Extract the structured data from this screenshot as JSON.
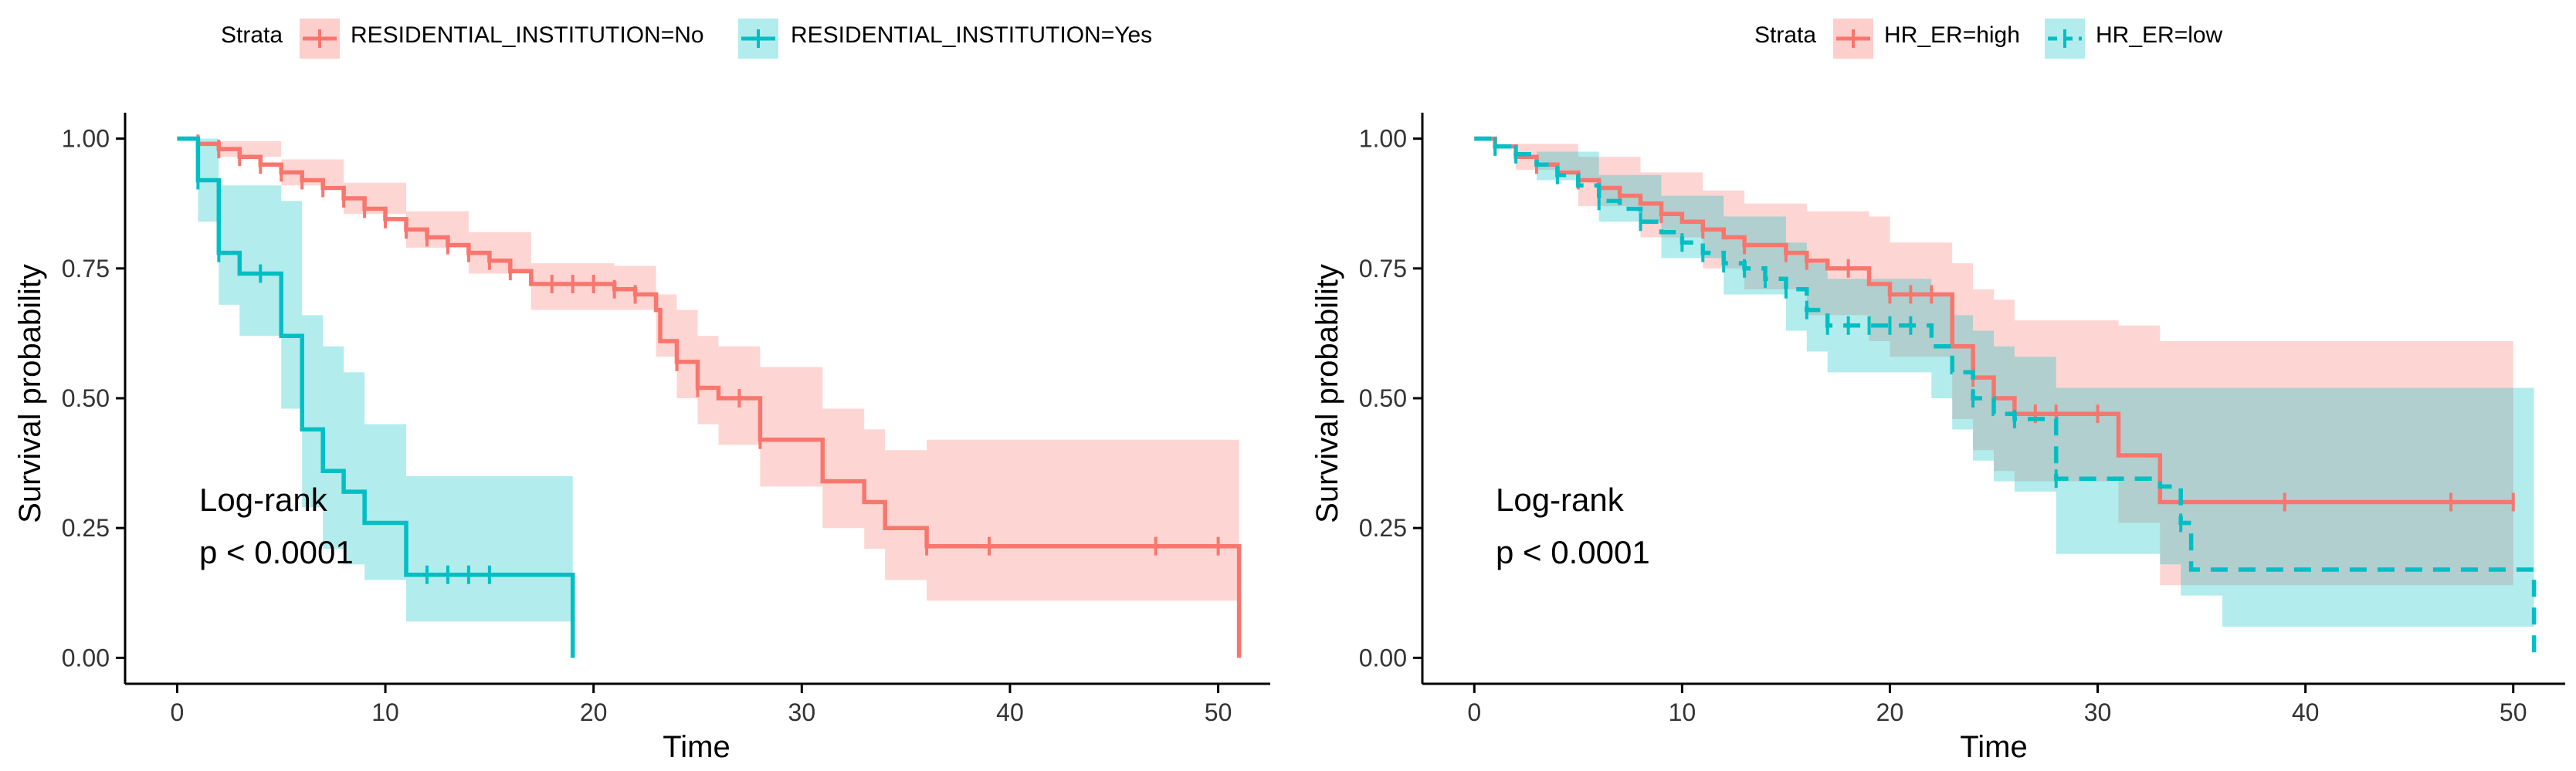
{
  "chart_data": [
    {
      "type": "line",
      "subtype": "kaplan-meier",
      "xlabel": "Time",
      "ylabel": "Survival probability",
      "xlim": [
        -2.5,
        52.5
      ],
      "ylim": [
        -0.05,
        1.05
      ],
      "x_ticks": [
        0,
        10,
        20,
        30,
        40,
        50
      ],
      "y_ticks": [
        0.0,
        0.25,
        0.5,
        0.75,
        1.0
      ],
      "x_tick_labels": [
        "0",
        "10",
        "20",
        "30",
        "40",
        "50"
      ],
      "y_tick_labels": [
        "0.00",
        "0.25",
        "0.50",
        "0.75",
        "1.00"
      ],
      "grid": false,
      "legend": {
        "title": "Strata",
        "position": "top"
      },
      "annotation": {
        "lines": [
          "Log-rank",
          "p < 0.0001"
        ],
        "x": 1,
        "y": 0.25
      },
      "series": [
        {
          "name": "RESIDENTIAL_INSTITUTION=No",
          "color": "#F8766D",
          "band_color": "#F8766D",
          "dash": "solid",
          "steps": [
            [
              0,
              1.0
            ],
            [
              1,
              0.99
            ],
            [
              2,
              0.98
            ],
            [
              3,
              0.965
            ],
            [
              4,
              0.95
            ],
            [
              5,
              0.935
            ],
            [
              6,
              0.92
            ],
            [
              7,
              0.905
            ],
            [
              8,
              0.885
            ],
            [
              9,
              0.865
            ],
            [
              10,
              0.845
            ],
            [
              11,
              0.825
            ],
            [
              12,
              0.81
            ],
            [
              13,
              0.795
            ],
            [
              14,
              0.78
            ],
            [
              15,
              0.765
            ],
            [
              16,
              0.745
            ],
            [
              17,
              0.72
            ],
            [
              21,
              0.71
            ],
            [
              22,
              0.7
            ],
            [
              23,
              0.67
            ],
            [
              23.2,
              0.61
            ],
            [
              24,
              0.57
            ],
            [
              25,
              0.52
            ],
            [
              26,
              0.5
            ],
            [
              28,
              0.42
            ],
            [
              31,
              0.34
            ],
            [
              33,
              0.3
            ],
            [
              34,
              0.25
            ],
            [
              36,
              0.215
            ],
            [
              51,
              0.215
            ]
          ],
          "drop_end": [
            51,
            0.0
          ],
          "lower": [
            [
              0,
              1.0
            ],
            [
              2,
              0.965
            ],
            [
              5,
              0.91
            ],
            [
              8,
              0.855
            ],
            [
              11,
              0.79
            ],
            [
              14,
              0.74
            ],
            [
              17,
              0.67
            ],
            [
              23,
              0.58
            ],
            [
              24,
              0.5
            ],
            [
              25,
              0.45
            ],
            [
              26,
              0.41
            ],
            [
              28,
              0.33
            ],
            [
              31,
              0.25
            ],
            [
              33,
              0.21
            ],
            [
              34,
              0.15
            ],
            [
              36,
              0.11
            ],
            [
              51,
              0.11
            ]
          ],
          "upper": [
            [
              0,
              1.0
            ],
            [
              2,
              0.995
            ],
            [
              5,
              0.96
            ],
            [
              8,
              0.915
            ],
            [
              11,
              0.86
            ],
            [
              14,
              0.82
            ],
            [
              17,
              0.76
            ],
            [
              21,
              0.755
            ],
            [
              23,
              0.7
            ],
            [
              24,
              0.67
            ],
            [
              25,
              0.62
            ],
            [
              26,
              0.6
            ],
            [
              28,
              0.56
            ],
            [
              31,
              0.48
            ],
            [
              33,
              0.44
            ],
            [
              34,
              0.4
            ],
            [
              36,
              0.42
            ],
            [
              51,
              0.42
            ]
          ],
          "censor_x": [
            1,
            2,
            3,
            4,
            5,
            6,
            7,
            8,
            9,
            10,
            11,
            12,
            13,
            14,
            15,
            16,
            18,
            19,
            20,
            21,
            22,
            24,
            25,
            27,
            28,
            36,
            39,
            47,
            50
          ]
        },
        {
          "name": "RESIDENTIAL_INSTITUTION=Yes",
          "color": "#00BFC4",
          "band_color": "#00BFC4",
          "dash": "solid",
          "steps": [
            [
              0,
              1.0
            ],
            [
              1,
              0.92
            ],
            [
              2,
              0.78
            ],
            [
              3,
              0.74
            ],
            [
              5,
              0.62
            ],
            [
              6,
              0.44
            ],
            [
              7,
              0.36
            ],
            [
              8,
              0.32
            ],
            [
              9,
              0.26
            ],
            [
              11,
              0.16
            ],
            [
              19,
              0.16
            ]
          ],
          "drop_end": [
            19,
            0.0
          ],
          "lower": [
            [
              0,
              1.0
            ],
            [
              1,
              0.84
            ],
            [
              2,
              0.68
            ],
            [
              3,
              0.62
            ],
            [
              5,
              0.48
            ],
            [
              6,
              0.29
            ],
            [
              7,
              0.21
            ],
            [
              8,
              0.18
            ],
            [
              9,
              0.15
            ],
            [
              11,
              0.07
            ],
            [
              19,
              0.07
            ]
          ],
          "upper": [
            [
              0,
              1.0
            ],
            [
              2,
              0.91
            ],
            [
              5,
              0.88
            ],
            [
              6,
              0.66
            ],
            [
              7,
              0.6
            ],
            [
              8,
              0.55
            ],
            [
              9,
              0.45
            ],
            [
              11,
              0.35
            ],
            [
              19,
              0.35
            ]
          ],
          "censor_x": [
            1,
            2,
            4,
            12,
            13,
            14,
            15
          ]
        }
      ]
    },
    {
      "type": "line",
      "subtype": "kaplan-meier",
      "xlabel": "Time",
      "ylabel": "Survival probability",
      "xlim": [
        -2.5,
        52.5
      ],
      "ylim": [
        -0.05,
        1.05
      ],
      "x_ticks": [
        0,
        10,
        20,
        30,
        40,
        50
      ],
      "y_ticks": [
        0.0,
        0.25,
        0.5,
        0.75,
        1.0
      ],
      "x_tick_labels": [
        "0",
        "10",
        "20",
        "30",
        "40",
        "50"
      ],
      "y_tick_labels": [
        "0.00",
        "0.25",
        "0.50",
        "0.75",
        "1.00"
      ],
      "grid": false,
      "legend": {
        "title": "Strata",
        "position": "top"
      },
      "annotation": {
        "lines": [
          "Log-rank",
          "p < 0.0001"
        ],
        "x": 1,
        "y": 0.25
      },
      "series": [
        {
          "name": "HR_ER=high",
          "color": "#F8766D",
          "band_color": "#F8766D",
          "dash": "solid",
          "steps": [
            [
              0,
              1.0
            ],
            [
              1,
              0.985
            ],
            [
              2,
              0.965
            ],
            [
              3,
              0.95
            ],
            [
              4,
              0.935
            ],
            [
              5,
              0.92
            ],
            [
              6,
              0.905
            ],
            [
              7,
              0.89
            ],
            [
              8,
              0.875
            ],
            [
              9,
              0.855
            ],
            [
              10,
              0.84
            ],
            [
              11,
              0.825
            ],
            [
              12,
              0.81
            ],
            [
              13,
              0.795
            ],
            [
              15,
              0.78
            ],
            [
              16,
              0.765
            ],
            [
              17,
              0.75
            ],
            [
              19,
              0.72
            ],
            [
              20,
              0.7
            ],
            [
              23,
              0.6
            ],
            [
              24,
              0.54
            ],
            [
              25,
              0.5
            ],
            [
              26,
              0.47
            ],
            [
              30,
              0.47
            ],
            [
              31,
              0.39
            ],
            [
              33,
              0.3
            ],
            [
              50,
              0.3
            ]
          ],
          "lower": [
            [
              0,
              1.0
            ],
            [
              2,
              0.94
            ],
            [
              5,
              0.87
            ],
            [
              8,
              0.81
            ],
            [
              11,
              0.75
            ],
            [
              13,
              0.71
            ],
            [
              16,
              0.66
            ],
            [
              19,
              0.61
            ],
            [
              20,
              0.58
            ],
            [
              23,
              0.46
            ],
            [
              24,
              0.4
            ],
            [
              25,
              0.36
            ],
            [
              26,
              0.34
            ],
            [
              31,
              0.26
            ],
            [
              33,
              0.14
            ],
            [
              50,
              0.14
            ]
          ],
          "upper": [
            [
              0,
              1.0
            ],
            [
              2,
              0.99
            ],
            [
              5,
              0.965
            ],
            [
              8,
              0.935
            ],
            [
              11,
              0.9
            ],
            [
              13,
              0.875
            ],
            [
              16,
              0.86
            ],
            [
              19,
              0.85
            ],
            [
              20,
              0.8
            ],
            [
              23,
              0.76
            ],
            [
              24,
              0.71
            ],
            [
              25,
              0.69
            ],
            [
              26,
              0.65
            ],
            [
              31,
              0.64
            ],
            [
              33,
              0.61
            ],
            [
              50,
              0.61
            ]
          ],
          "censor_x": [
            1,
            3,
            5,
            7,
            9,
            11,
            13,
            15,
            16,
            18,
            20,
            21,
            22,
            24,
            26,
            27,
            28,
            30,
            39,
            47,
            50
          ]
        },
        {
          "name": "HR_ER=low",
          "color": "#00BFC4",
          "band_color": "#00BFC4",
          "dash": "dashed",
          "steps": [
            [
              0,
              1.0
            ],
            [
              1,
              0.985
            ],
            [
              2,
              0.97
            ],
            [
              3,
              0.95
            ],
            [
              4,
              0.93
            ],
            [
              5,
              0.91
            ],
            [
              6,
              0.88
            ],
            [
              7,
              0.865
            ],
            [
              8,
              0.84
            ],
            [
              9,
              0.82
            ],
            [
              10,
              0.8
            ],
            [
              11,
              0.78
            ],
            [
              12,
              0.76
            ],
            [
              13,
              0.75
            ],
            [
              14,
              0.73
            ],
            [
              15,
              0.71
            ],
            [
              16,
              0.67
            ],
            [
              17,
              0.64
            ],
            [
              22,
              0.6
            ],
            [
              23,
              0.55
            ],
            [
              24,
              0.5
            ],
            [
              25,
              0.47
            ],
            [
              26,
              0.46
            ],
            [
              28,
              0.345
            ],
            [
              33,
              0.33
            ],
            [
              34,
              0.26
            ],
            [
              34.5,
              0.17
            ],
            [
              51,
              0.17
            ]
          ],
          "drop_end": [
            51,
            0.0
          ],
          "lower": [
            [
              0,
              1.0
            ],
            [
              3,
              0.92
            ],
            [
              6,
              0.84
            ],
            [
              9,
              0.77
            ],
            [
              12,
              0.7
            ],
            [
              15,
              0.63
            ],
            [
              16,
              0.59
            ],
            [
              17,
              0.55
            ],
            [
              22,
              0.5
            ],
            [
              23,
              0.44
            ],
            [
              24,
              0.38
            ],
            [
              25,
              0.34
            ],
            [
              26,
              0.32
            ],
            [
              28,
              0.2
            ],
            [
              33,
              0.18
            ],
            [
              34,
              0.12
            ],
            [
              36,
              0.06
            ],
            [
              51,
              0.06
            ]
          ],
          "upper": [
            [
              0,
              1.0
            ],
            [
              3,
              0.975
            ],
            [
              6,
              0.93
            ],
            [
              9,
              0.89
            ],
            [
              12,
              0.85
            ],
            [
              15,
              0.8
            ],
            [
              16,
              0.76
            ],
            [
              17,
              0.73
            ],
            [
              22,
              0.7
            ],
            [
              23,
              0.66
            ],
            [
              24,
              0.63
            ],
            [
              25,
              0.6
            ],
            [
              26,
              0.58
            ],
            [
              28,
              0.52
            ],
            [
              51,
              0.52
            ]
          ],
          "censor_x": [
            1,
            2,
            4,
            6,
            8,
            10,
            11,
            12,
            13,
            14,
            15,
            16,
            17,
            18,
            19,
            20,
            21,
            24,
            26,
            28,
            34
          ]
        }
      ]
    }
  ]
}
